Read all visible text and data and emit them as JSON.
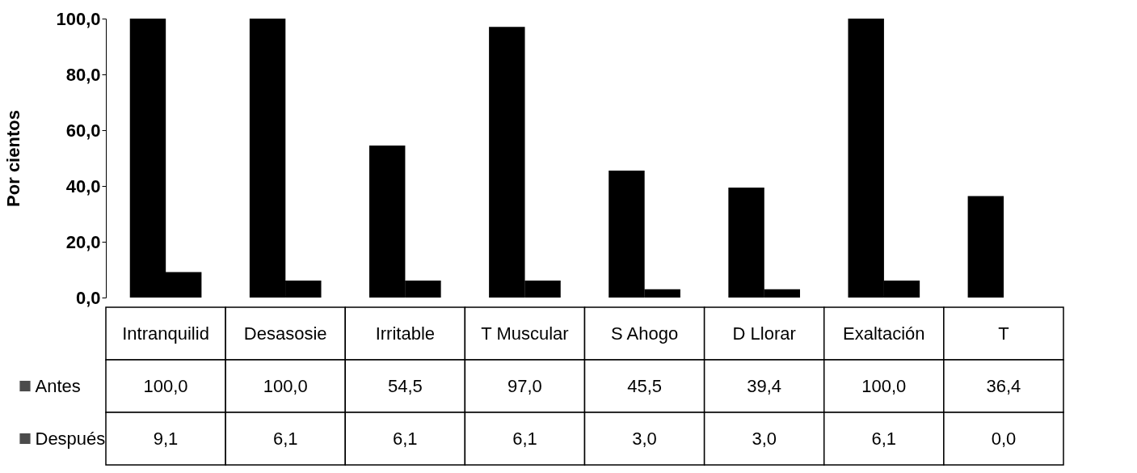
{
  "chart_data": {
    "type": "bar",
    "ylabel": "Por cientos",
    "categories": [
      "Intranquilid",
      "Desasosie",
      "Irritable",
      "T Muscular",
      "S Ahogo",
      "D Llorar",
      "Exaltación",
      "T"
    ],
    "series": [
      {
        "name": "Antes",
        "color": "#000000",
        "values": [
          100.0,
          100.0,
          54.5,
          97.0,
          45.5,
          39.4,
          100.0,
          36.4
        ],
        "value_labels": [
          "100,0",
          "100,0",
          "54,5",
          "97,0",
          "45,5",
          "39,4",
          "100,0",
          "36,4"
        ]
      },
      {
        "name": "Después",
        "color": "#000000",
        "values": [
          9.1,
          6.1,
          6.1,
          6.1,
          3.0,
          3.0,
          6.1,
          0.0
        ],
        "value_labels": [
          "9,1",
          "6,1",
          "6,1",
          "6,1",
          "3,0",
          "3,0",
          "6,1",
          "0,0"
        ]
      }
    ],
    "ylim": [
      0,
      100
    ],
    "yticks": [
      {
        "value": 0,
        "label": "0,0"
      },
      {
        "value": 20,
        "label": "20,0"
      },
      {
        "value": 40,
        "label": "40,0"
      },
      {
        "value": 60,
        "label": "60,0"
      },
      {
        "value": 80,
        "label": "80,0"
      },
      {
        "value": 100,
        "label": "100,0"
      }
    ],
    "grid": false,
    "legend": "bottom"
  }
}
